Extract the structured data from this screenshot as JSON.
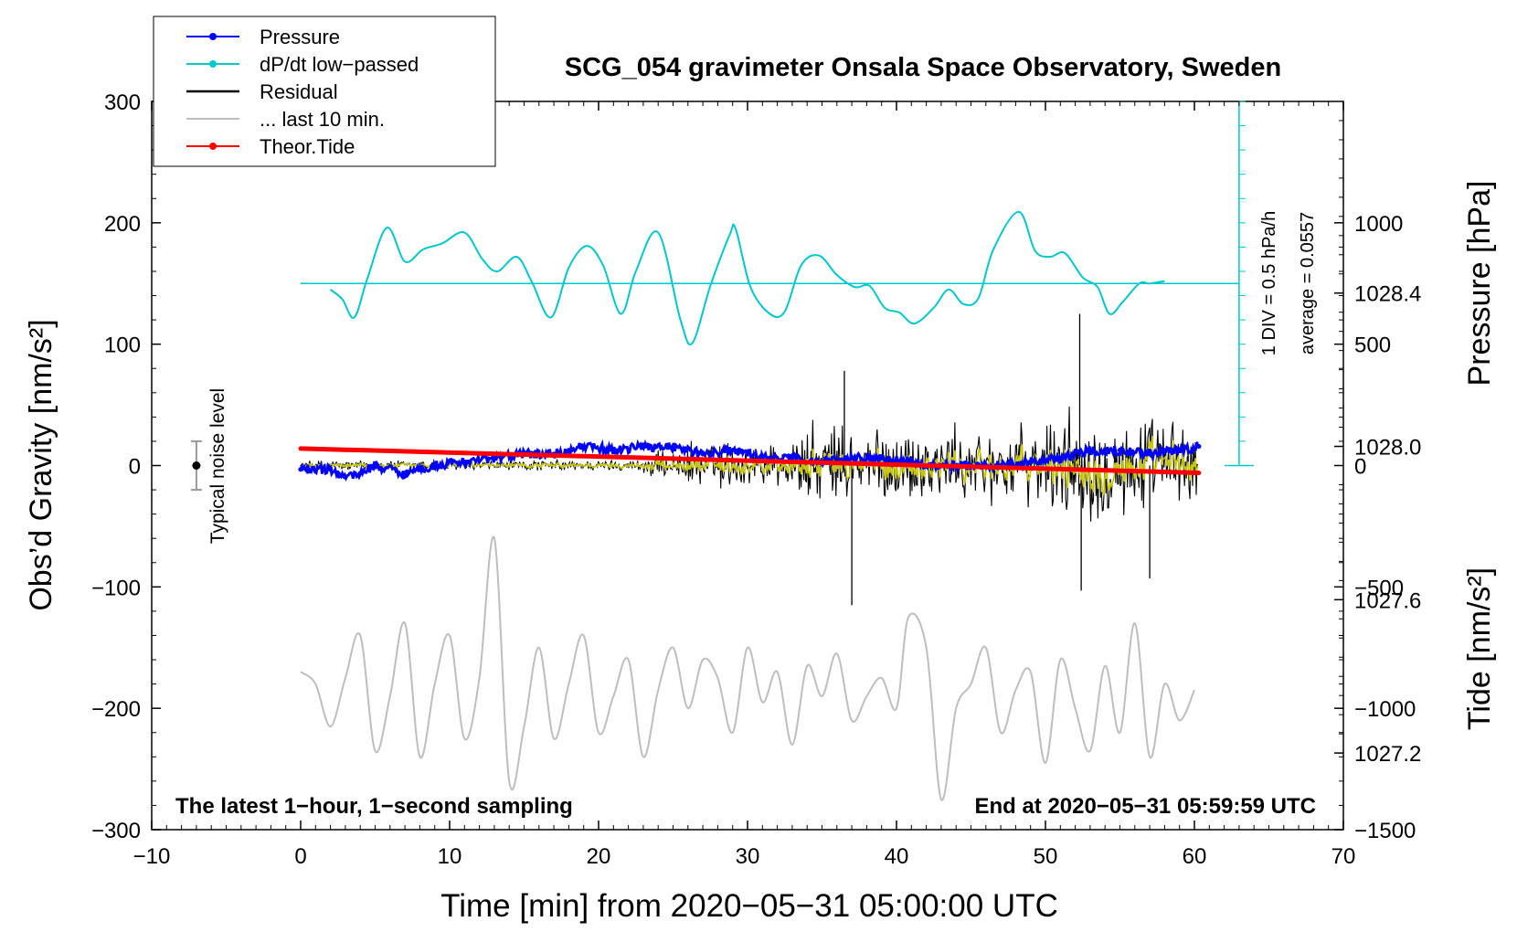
{
  "chart_data": {
    "type": "line",
    "title": "SCG_054 gravimeter Onsala Space Observatory, Sweden",
    "xlabel": "Time [min] from 2020−05−31 05:00:00 UTC",
    "ylabel_left": "Obs’d Gravity [nm/s²]",
    "ylabel_right_top": "Pressure [hPa]",
    "ylabel_right_bottom": "Tide [nm/s²]",
    "xlim": [
      -10,
      70
    ],
    "ylim": [
      -300,
      300
    ],
    "pressure_ylim": [
      1027.0,
      1028.9
    ],
    "tide_ylim": [
      -1500,
      1500
    ],
    "x_ticks": [
      -10,
      0,
      10,
      20,
      30,
      40,
      50,
      60,
      70
    ],
    "x_tick_labels": [
      "−10",
      "0",
      "10",
      "20",
      "30",
      "40",
      "50",
      "60",
      "70"
    ],
    "y_ticks": [
      300,
      200,
      100,
      0,
      -100,
      -200,
      -300
    ],
    "y_tick_labels": [
      "300",
      "200",
      "100",
      "0",
      "−100",
      "−200",
      "−300"
    ],
    "pressure_ticks": [
      1028.4,
      1028.0,
      1027.6,
      1027.2
    ],
    "pressure_tick_labels": [
      "1028.4",
      "1028.0",
      "1027.6",
      "1027.2"
    ],
    "tide_ticks": [
      1000,
      500,
      0,
      -500,
      -1000,
      -1500
    ],
    "tide_tick_labels": [
      "1000",
      "500",
      "0",
      "−500",
      "−1000",
      "−1500"
    ],
    "legend": [
      {
        "label": "Pressure",
        "color": "#0000ff",
        "marker": true
      },
      {
        "label": "dP/dt low−passed",
        "color": "#00c8c8",
        "marker": true
      },
      {
        "label": "Residual",
        "color": "#000000",
        "marker": false
      },
      {
        "label": "... last 10 min.",
        "color": "#bebebe",
        "marker": false
      },
      {
        "label": "Theor.Tide",
        "color": "#ff0000",
        "marker": true
      }
    ],
    "annotations": {
      "noise": "Typical noise level",
      "scale": "1 DIV = 0.5 hPa/h",
      "average": "average = 0.0557",
      "bottom_left": "The latest 1−hour, 1−second sampling",
      "bottom_right": "End at 2020−05−31 05:59:59 UTC"
    },
    "noise_level": {
      "x": -7,
      "center": 0,
      "halfwidth": 20
    },
    "dpdt_baseline": 150,
    "series": [
      {
        "name": "Pressure",
        "color": "#0000ff",
        "axis": "pressure",
        "x": [
          0,
          2,
          3,
          4,
          5,
          7,
          9,
          11,
          13,
          15,
          17,
          19,
          21,
          23,
          25,
          27,
          29,
          31,
          33,
          35,
          37,
          39,
          41,
          43,
          45,
          47,
          49,
          51,
          53,
          55,
          57,
          59,
          60.3
        ],
        "values": [
          1027.94,
          1027.94,
          1027.92,
          1027.93,
          1027.95,
          1027.93,
          1027.95,
          1027.96,
          1027.97,
          1027.98,
          1027.98,
          1028.0,
          1027.99,
          1028.0,
          1028.0,
          1027.98,
          1027.99,
          1027.97,
          1027.97,
          1027.96,
          1027.97,
          1027.97,
          1027.96,
          1027.95,
          1027.95,
          1027.95,
          1027.96,
          1027.97,
          1027.99,
          1027.99,
          1027.98,
          1027.99,
          1028.0
        ]
      },
      {
        "name": "dP/dt low−passed",
        "color": "#00c8c8",
        "axis": "gravity",
        "x": [
          2,
          2.8,
          3.6,
          4.5,
          5.8,
          7,
          8.2,
          9.5,
          11,
          12.2,
          13.2,
          14.5,
          15.5,
          16.8,
          18,
          19.2,
          20.3,
          21.5,
          22.5,
          24,
          25.5,
          26.3,
          27.5,
          28.8,
          29.2,
          30.2,
          31.5,
          32.5,
          33.6,
          34.8,
          36,
          37.2,
          38.2,
          39.2,
          40.2,
          41.2,
          42.5,
          43.5,
          44.5,
          45.5,
          46.5,
          48.2,
          49.3,
          50.3,
          51.3,
          52.5,
          53.5,
          54.3,
          55.2,
          56.3,
          57,
          58
        ],
        "values": [
          145,
          137,
          122,
          155,
          196,
          168,
          178,
          183,
          192,
          170,
          160,
          172,
          152,
          122,
          163,
          181,
          165,
          125,
          160,
          192,
          120,
          101,
          148,
          190,
          195,
          147,
          125,
          127,
          165,
          173,
          157,
          147,
          148,
          130,
          126,
          117,
          130,
          145,
          133,
          138,
          178,
          209,
          177,
          172,
          175,
          155,
          147,
          125,
          135,
          150,
          150,
          152
        ]
      },
      {
        "name": "Residual",
        "color": "#000000",
        "axis": "gravity",
        "x_range": [
          0,
          60.3
        ],
        "amplitude_note": "±5 before 23 min, growing to peaks of about +125 / −115 near 37 and 52 min",
        "peaks": [
          {
            "x": 36.5,
            "y": 78
          },
          {
            "x": 37.0,
            "y": -115
          },
          {
            "x": 52.3,
            "y": 125
          },
          {
            "x": 52.4,
            "y": -103
          },
          {
            "x": 57.0,
            "y": -93
          }
        ]
      },
      {
        "name": "Residual (filtered)",
        "color": "#c8c800",
        "axis": "gravity",
        "x_range": [
          0,
          60.3
        ]
      },
      {
        "name": "... last 10 min.",
        "color": "#bebebe",
        "axis": "gravity",
        "x_range": [
          0,
          60
        ],
        "x": [
          0,
          1,
          2,
          3,
          4,
          5,
          6,
          7,
          8,
          9,
          10,
          11,
          12,
          13,
          14,
          15,
          16,
          17,
          18,
          19,
          20,
          21,
          22,
          23,
          24,
          25,
          26,
          27,
          28,
          29,
          30,
          31,
          32,
          33,
          34,
          35,
          36,
          37,
          38,
          39,
          40,
          40.8,
          42,
          43,
          44,
          45,
          46,
          47,
          48,
          49,
          50,
          51,
          52,
          53,
          54,
          55,
          56,
          57,
          58,
          59,
          60
        ],
        "values": [
          -170,
          -180,
          -215,
          -175,
          -140,
          -235,
          -190,
          -130,
          -240,
          -180,
          -140,
          -225,
          -175,
          -60,
          -260,
          -215,
          -150,
          -225,
          -180,
          -140,
          -220,
          -190,
          -160,
          -240,
          -185,
          -150,
          -200,
          -160,
          -175,
          -220,
          -150,
          -195,
          -170,
          -230,
          -165,
          -190,
          -155,
          -210,
          -190,
          -175,
          -200,
          -125,
          -150,
          -275,
          -200,
          -180,
          -150,
          -220,
          -185,
          -170,
          -245,
          -160,
          -200,
          -235,
          -165,
          -220,
          -130,
          -240,
          -180,
          -210,
          -185
        ]
      },
      {
        "name": "Theor.Tide",
        "color": "#ff0000",
        "axis": "tide",
        "x": [
          0,
          60.3
        ],
        "values": [
          70,
          -30
        ]
      }
    ]
  }
}
